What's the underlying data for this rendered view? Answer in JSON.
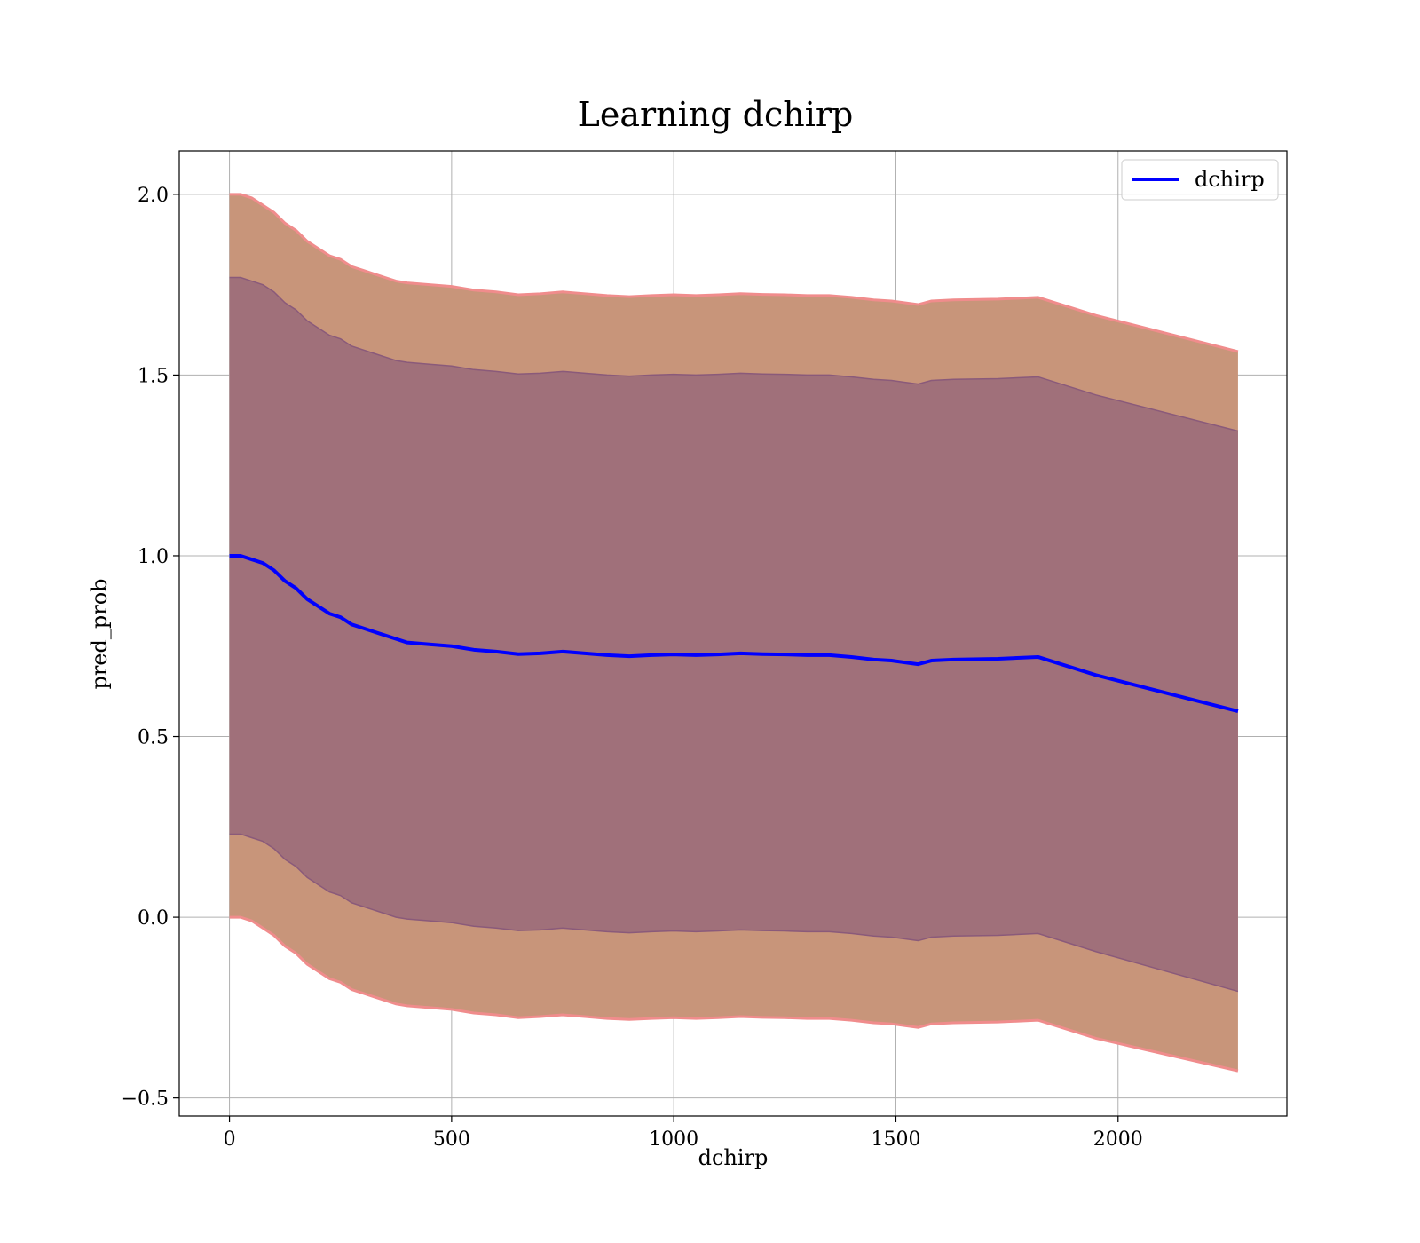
{
  "chart_data": {
    "type": "line",
    "title": "Learning dchirp",
    "xlabel": "dchirp",
    "ylabel": "pred_prob",
    "xlim": [
      -113,
      2380
    ],
    "ylim": [
      -0.55,
      2.12
    ],
    "xticks": [
      0,
      500,
      1000,
      1500,
      2000
    ],
    "xtick_labels": [
      "0",
      "500",
      "1000",
      "1500",
      "2000"
    ],
    "yticks": [
      -0.5,
      0.0,
      0.5,
      1.0,
      1.5,
      2.0
    ],
    "ytick_labels": [
      "−0.5",
      "0.0",
      "0.5",
      "1.0",
      "1.5",
      "2.0"
    ],
    "grid": true,
    "legend": {
      "position": "top-right",
      "entries": [
        "dchirp"
      ]
    },
    "colors": {
      "line": "#0000ff",
      "outer_band": "#c8957a",
      "outer_band_edge": "#f08c8c",
      "inner_band": "#a0707a",
      "inner_band_edge": "#8a5a7a",
      "grid": "#b0b0b0"
    },
    "series": [
      {
        "name": "dchirp",
        "x": [
          0,
          25,
          50,
          75,
          100,
          125,
          150,
          175,
          200,
          225,
          250,
          275,
          300,
          325,
          350,
          375,
          400,
          450,
          500,
          550,
          600,
          650,
          700,
          750,
          800,
          850,
          900,
          950,
          1000,
          1050,
          1100,
          1150,
          1200,
          1250,
          1300,
          1350,
          1400,
          1450,
          1490,
          1550,
          1580,
          1630,
          1730,
          1820,
          1950,
          2270
        ],
        "mean": [
          1.0,
          1.0,
          0.99,
          0.98,
          0.96,
          0.93,
          0.91,
          0.88,
          0.86,
          0.84,
          0.83,
          0.81,
          0.8,
          0.79,
          0.78,
          0.77,
          0.76,
          0.755,
          0.75,
          0.74,
          0.735,
          0.728,
          0.73,
          0.735,
          0.73,
          0.725,
          0.722,
          0.725,
          0.727,
          0.725,
          0.727,
          0.73,
          0.728,
          0.727,
          0.725,
          0.725,
          0.72,
          0.713,
          0.71,
          0.7,
          0.71,
          0.713,
          0.715,
          0.72,
          0.67,
          0.57
        ],
        "outer_upper": [
          2.0,
          2.0,
          1.99,
          1.97,
          1.95,
          1.92,
          1.9,
          1.87,
          1.85,
          1.83,
          1.82,
          1.8,
          1.79,
          1.78,
          1.77,
          1.76,
          1.755,
          1.75,
          1.745,
          1.735,
          1.73,
          1.722,
          1.725,
          1.73,
          1.725,
          1.72,
          1.717,
          1.72,
          1.722,
          1.72,
          1.722,
          1.725,
          1.723,
          1.722,
          1.72,
          1.72,
          1.715,
          1.708,
          1.705,
          1.695,
          1.705,
          1.708,
          1.71,
          1.715,
          1.665,
          1.565
        ],
        "outer_lower": [
          0.0,
          0.0,
          -0.01,
          -0.03,
          -0.05,
          -0.08,
          -0.1,
          -0.13,
          -0.15,
          -0.17,
          -0.18,
          -0.2,
          -0.21,
          -0.22,
          -0.23,
          -0.24,
          -0.245,
          -0.25,
          -0.255,
          -0.265,
          -0.27,
          -0.278,
          -0.275,
          -0.27,
          -0.275,
          -0.28,
          -0.283,
          -0.28,
          -0.278,
          -0.28,
          -0.278,
          -0.275,
          -0.277,
          -0.278,
          -0.28,
          -0.28,
          -0.285,
          -0.292,
          -0.295,
          -0.305,
          -0.295,
          -0.292,
          -0.29,
          -0.285,
          -0.335,
          -0.425
        ],
        "inner_upper": [
          1.77,
          1.77,
          1.76,
          1.75,
          1.73,
          1.7,
          1.68,
          1.65,
          1.63,
          1.61,
          1.6,
          1.58,
          1.57,
          1.56,
          1.55,
          1.54,
          1.535,
          1.53,
          1.525,
          1.515,
          1.51,
          1.503,
          1.505,
          1.51,
          1.505,
          1.5,
          1.497,
          1.5,
          1.502,
          1.5,
          1.502,
          1.505,
          1.503,
          1.502,
          1.5,
          1.5,
          1.495,
          1.488,
          1.485,
          1.475,
          1.485,
          1.488,
          1.49,
          1.495,
          1.445,
          1.345
        ],
        "inner_lower": [
          0.23,
          0.23,
          0.22,
          0.21,
          0.19,
          0.16,
          0.14,
          0.11,
          0.09,
          0.07,
          0.06,
          0.04,
          0.03,
          0.02,
          0.01,
          0.0,
          -0.005,
          -0.01,
          -0.015,
          -0.025,
          -0.03,
          -0.037,
          -0.035,
          -0.03,
          -0.035,
          -0.04,
          -0.043,
          -0.04,
          -0.038,
          -0.04,
          -0.038,
          -0.035,
          -0.037,
          -0.038,
          -0.04,
          -0.04,
          -0.045,
          -0.052,
          -0.055,
          -0.065,
          -0.055,
          -0.052,
          -0.05,
          -0.045,
          -0.095,
          -0.205
        ]
      }
    ]
  }
}
